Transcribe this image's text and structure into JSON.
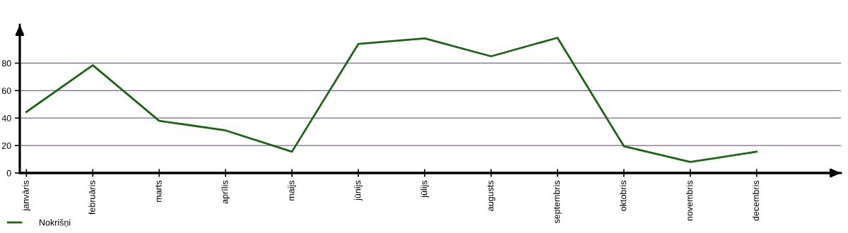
{
  "chart_data": {
    "type": "line",
    "categories": [
      "janvāris",
      "februāris",
      "marts",
      "aprīlis",
      "maijs",
      "jūnijs",
      "jūlijs",
      "augusts",
      "septembris",
      "oktobris",
      "novembris",
      "decembris"
    ],
    "series": [
      {
        "name": "Nokrišņi",
        "color": "#1a6414",
        "values": [
          44.5,
          78.5,
          38,
          31,
          15.5,
          94,
          98,
          85,
          98.5,
          19.5,
          8,
          15.5
        ]
      }
    ],
    "ylim": [
      0,
      108
    ],
    "yticks": [
      0,
      20,
      40,
      60,
      80
    ],
    "grid": "y",
    "legend": "bottom left",
    "marker": "none",
    "line_style": "solid"
  }
}
